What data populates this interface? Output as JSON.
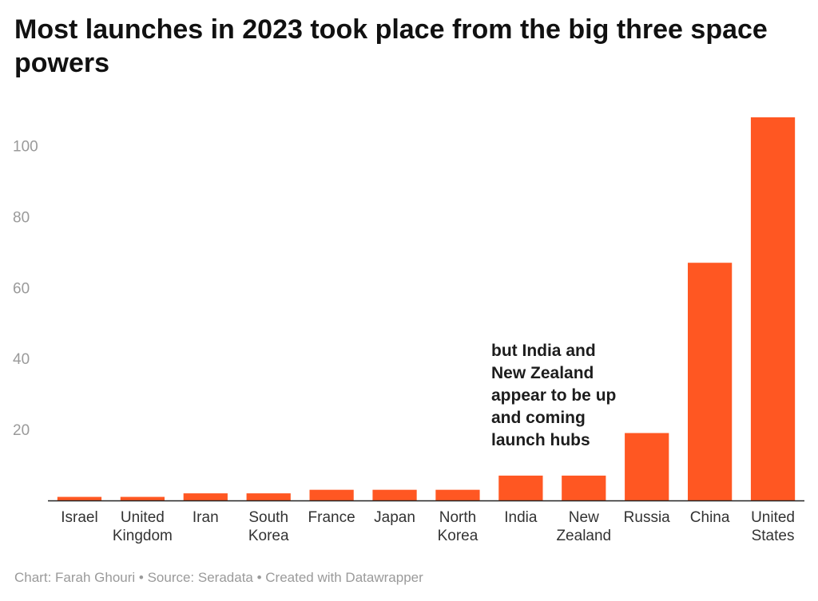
{
  "title": "Most launches in 2023 took place from the big three space powers",
  "annotation": "but India and\nNew Zealand\nappear to be up\nand coming\nlaunch hubs",
  "footer": "Chart: Farah Ghouri • Source: Seradata • Created with Datawrapper",
  "colors": {
    "bar": "#ff5722",
    "axis": "#222222",
    "tick_text": "#9a9a9a"
  },
  "chart_data": {
    "type": "bar",
    "categories": [
      [
        "Israel"
      ],
      [
        "United",
        "Kingdom"
      ],
      [
        "Iran"
      ],
      [
        "South",
        "Korea"
      ],
      [
        "France"
      ],
      [
        "Japan"
      ],
      [
        "North",
        "Korea"
      ],
      [
        "India"
      ],
      [
        "New",
        "Zealand"
      ],
      [
        "Russia"
      ],
      [
        "China"
      ],
      [
        "United",
        "States"
      ]
    ],
    "values": [
      1,
      1,
      2,
      2,
      3,
      3,
      3,
      7,
      7,
      19,
      67,
      108
    ],
    "y_ticks": [
      20,
      40,
      60,
      80,
      100
    ],
    "ylim": [
      0,
      108
    ],
    "grid": false,
    "title": "Most launches in 2023 took place from the big three space powers",
    "xlabel": "",
    "ylabel": ""
  }
}
